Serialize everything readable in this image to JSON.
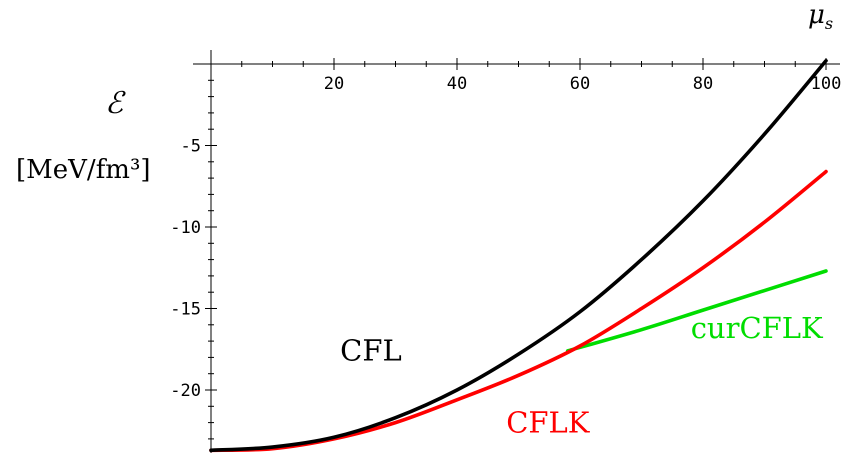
{
  "chart_data": {
    "type": "line",
    "xlabel": "μ_s",
    "ylabel_symbol": "ℰ",
    "ylabel_unit": "[MeV/fm³]",
    "xlim": [
      0,
      100
    ],
    "ylim": [
      -24,
      2
    ],
    "grid": false,
    "x_axis_position": "top",
    "x_ticks": [
      20,
      40,
      60,
      80,
      100
    ],
    "x_tick_labels": [
      "20",
      "40",
      "60",
      "80",
      "100"
    ],
    "y_ticks": [
      -5,
      -10,
      -15,
      -20
    ],
    "y_tick_labels": [
      "-5",
      "-10",
      "-15",
      "-20"
    ],
    "series": [
      {
        "name": "CFL",
        "color": "#000000",
        "x": [
          0,
          10,
          20,
          30,
          40,
          50,
          60,
          70,
          80,
          90,
          100
        ],
        "y": [
          -23.7,
          -23.5,
          -22.9,
          -21.7,
          -20.0,
          -17.8,
          -15.2,
          -12.0,
          -8.4,
          -4.3,
          0.2
        ]
      },
      {
        "name": "CFLK",
        "color": "#ff0000",
        "x": [
          0,
          10,
          20,
          30,
          40,
          50,
          60,
          70,
          80,
          90,
          100
        ],
        "y": [
          -23.7,
          -23.6,
          -23.0,
          -22.0,
          -20.6,
          -19.1,
          -17.3,
          -15.0,
          -12.5,
          -9.7,
          -6.6
        ]
      },
      {
        "name": "curCFLK",
        "color": "#00dd00",
        "x": [
          58,
          70,
          80,
          90,
          100
        ],
        "y": [
          -17.6,
          -16.3,
          -15.1,
          -13.9,
          -12.7
        ]
      }
    ],
    "annotations": [
      {
        "text": "CFL",
        "color": "#000000",
        "x": 21,
        "y": -18.2
      },
      {
        "text": "CFLK",
        "color": "#ff0000",
        "x": 48,
        "y": -22.6
      },
      {
        "text": "curCFLK",
        "color": "#00dd00",
        "x": 78,
        "y": -16.8
      }
    ]
  }
}
